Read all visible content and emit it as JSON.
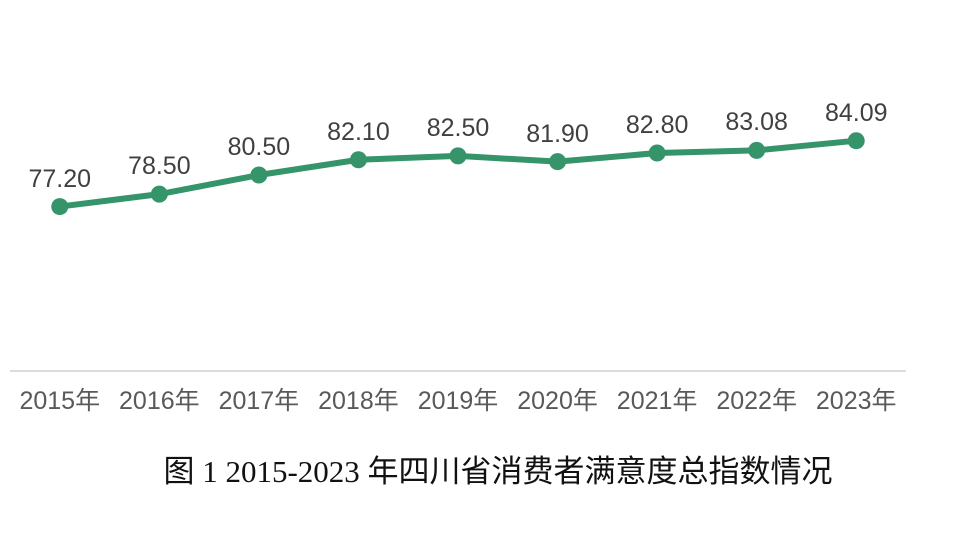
{
  "chart_data": {
    "type": "line",
    "title": "",
    "xlabel": "",
    "ylabel": "",
    "categories": [
      "2015年",
      "2016年",
      "2017年",
      "2018年",
      "2019年",
      "2020年",
      "2021年",
      "2022年",
      "2023年"
    ],
    "series": [
      {
        "name": "消费者满意度总指数",
        "values": [
          77.2,
          78.5,
          80.5,
          82.1,
          82.5,
          81.9,
          82.8,
          83.08,
          84.09
        ],
        "labels": [
          "77.20",
          "78.50",
          "80.50",
          "82.10",
          "82.50",
          "81.90",
          "82.80",
          "83.08",
          "84.09"
        ]
      }
    ],
    "ylim": [
      60,
      85
    ],
    "grid": false,
    "legend": false,
    "colors": {
      "line": "#35946a",
      "marker": "#35946a",
      "data_label": "#404040",
      "tick_label": "#595959",
      "axis_line": "#dcdcdc"
    }
  },
  "caption": "图 1  2015-2023 年四川省消费者满意度总指数情况"
}
